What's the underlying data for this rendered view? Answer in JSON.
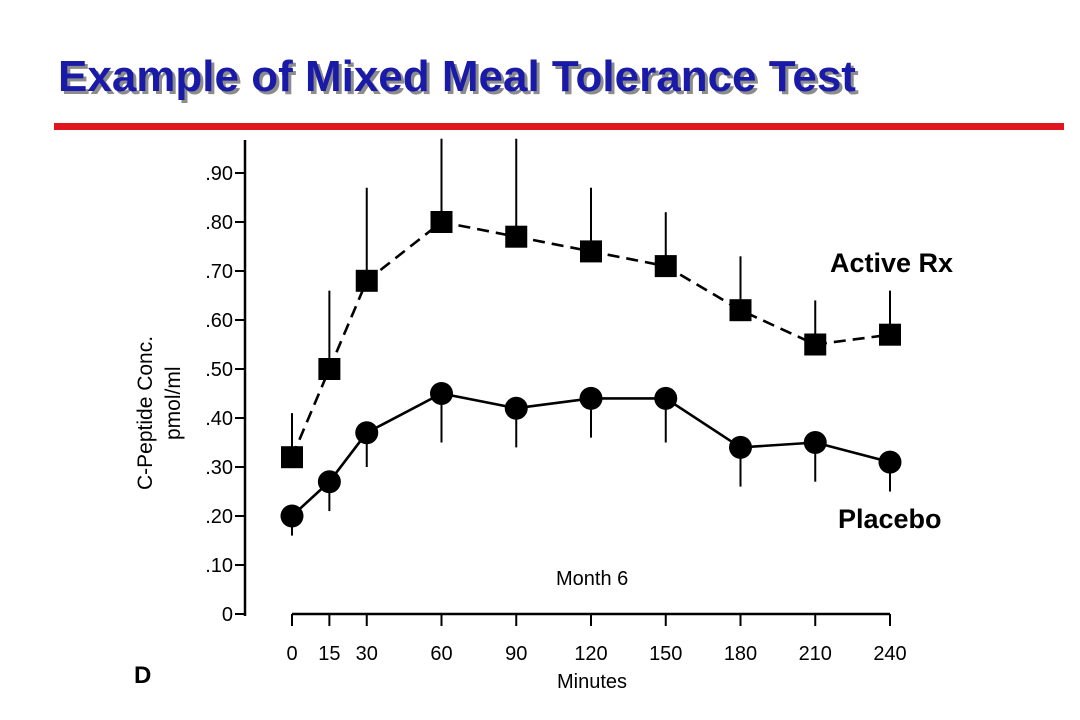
{
  "slide": {
    "title": "Example of Mixed Meal Tolerance Test",
    "title_color": "#1a1aa8",
    "rule_color": "#e0161e"
  },
  "chart_data": {
    "type": "line",
    "xlabel": "Minutes",
    "ylabel_line1": "C-Peptide Conc.",
    "ylabel_line2": "pmol/ml",
    "annotation": "Month 6",
    "panel_label": "D",
    "x": [
      0,
      15,
      30,
      60,
      90,
      120,
      150,
      180,
      210,
      240
    ],
    "x_tick_labels": [
      "0",
      "15",
      "30",
      "60",
      "90",
      "120",
      "150",
      "180",
      "210",
      "240"
    ],
    "y_ticks": [
      0,
      0.1,
      0.2,
      0.3,
      0.4,
      0.5,
      0.6,
      0.7,
      0.8,
      0.9
    ],
    "y_tick_labels": [
      "0",
      ".10",
      ".20",
      ".30",
      ".40",
      ".50",
      ".60",
      ".70",
      ".80",
      ".90"
    ],
    "ylim": [
      0,
      0.95
    ],
    "xlim": [
      0,
      240
    ],
    "grid": false,
    "series": [
      {
        "name": "Active Rx",
        "marker": "square",
        "line_style": "dashed",
        "values": [
          0.32,
          0.5,
          0.68,
          0.8,
          0.77,
          0.74,
          0.71,
          0.62,
          0.55,
          0.57
        ],
        "error_upper": [
          0.41,
          0.66,
          0.87,
          0.97,
          0.97,
          0.87,
          0.82,
          0.73,
          0.64,
          0.66
        ]
      },
      {
        "name": "Placebo",
        "marker": "circle",
        "line_style": "solid",
        "values": [
          0.2,
          0.27,
          0.37,
          0.45,
          0.42,
          0.44,
          0.44,
          0.34,
          0.35,
          0.31
        ],
        "error_lower": [
          0.16,
          0.21,
          0.3,
          0.35,
          0.34,
          0.36,
          0.35,
          0.26,
          0.27,
          0.25
        ]
      }
    ]
  }
}
